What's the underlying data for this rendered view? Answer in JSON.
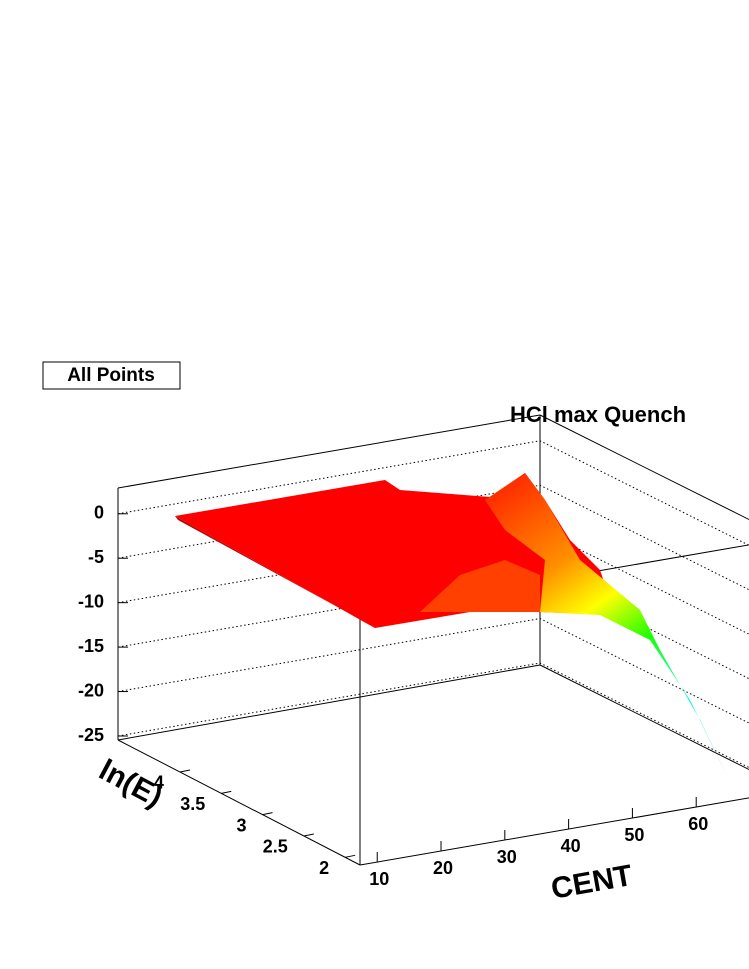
{
  "chart_data": {
    "type": "surface3d",
    "title": "HCl max Quench",
    "label": "All Points",
    "xlabel": "CENT",
    "ylabel": "ln(E)",
    "xlim": [
      7.3,
      70
    ],
    "xticks": [
      10,
      20,
      30,
      40,
      50,
      60
    ],
    "ylim": [
      1.82,
      4.75
    ],
    "yticks": [
      2,
      2.5,
      3,
      3.5,
      4
    ],
    "zlim": [
      -25.45,
      2.9
    ],
    "zticks": [
      0,
      -5,
      -10,
      -15,
      -20,
      -25
    ],
    "grid": true
  }
}
